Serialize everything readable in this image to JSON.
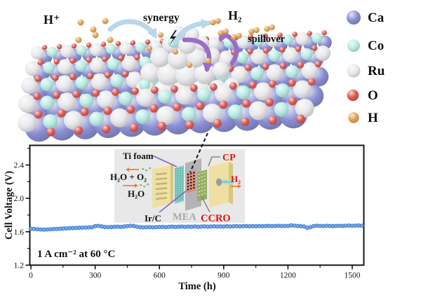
{
  "figure": {
    "top_labels": {
      "h_plus": "H⁺",
      "synergy": "synergy",
      "h2": "H₂",
      "spillover": "spillover"
    },
    "legend": {
      "items": [
        {
          "label": "Ca",
          "atom": "Ca"
        },
        {
          "label": "Co",
          "atom": "Co"
        },
        {
          "label": "Ru",
          "atom": "Ru"
        },
        {
          "label": "O",
          "atom": "O"
        },
        {
          "label": "H",
          "atom": "H"
        }
      ]
    },
    "inset": {
      "ti_foam": "Ti foam",
      "cp": "CP",
      "h2o_o2": "H₂O + O₂",
      "h2o": "H₂O",
      "irc": "Ir/C",
      "mea": "MEA",
      "ccro": "CCRO",
      "h2_out": "H₂"
    }
  },
  "chart_data": {
    "type": "scatter",
    "title": "",
    "xlabel": "Time (h)",
    "ylabel": "Cell Voltage (V)",
    "xlim": [
      0,
      1570
    ],
    "ylim": [
      1.2,
      2.63
    ],
    "x_ticks": [
      0,
      300,
      600,
      900,
      1200,
      1500
    ],
    "y_ticks": [
      1.2,
      1.6,
      2.0,
      2.4
    ],
    "x_minor_tick_step": 150,
    "y_minor_tick_step": 0.2,
    "grid": false,
    "annotation": "1 A cm⁻² at 60 °C",
    "series": [
      {
        "name": "cell voltage at 1 A cm-2",
        "color": "#6ea3e8",
        "t_start": 0,
        "t_step": 15,
        "values": [
          1.636,
          1.633,
          1.63,
          1.627,
          1.625,
          1.627,
          1.629,
          1.632,
          1.634,
          1.636,
          1.638,
          1.64,
          1.642,
          1.644,
          1.645,
          1.647,
          1.649,
          1.65,
          1.652,
          1.653,
          1.667,
          1.671,
          1.664,
          1.657,
          1.655,
          1.657,
          1.659,
          1.661,
          1.658,
          1.663,
          1.667,
          1.672,
          1.669,
          1.661,
          1.655,
          1.652,
          1.654,
          1.656,
          1.653,
          1.655,
          1.657,
          1.658,
          1.656,
          1.659,
          1.661,
          1.658,
          1.66,
          1.662,
          1.659,
          1.661,
          1.66,
          1.663,
          1.66,
          1.662,
          1.664,
          1.661,
          1.663,
          1.665,
          1.662,
          1.664,
          1.662,
          1.666,
          1.663,
          1.665,
          1.667,
          1.664,
          1.666,
          1.668,
          1.665,
          1.667,
          1.665,
          1.668,
          1.666,
          1.668,
          1.67,
          1.667,
          1.669,
          1.671,
          1.668,
          1.67,
          1.669,
          1.677,
          1.673,
          1.669,
          1.666,
          1.663,
          1.648,
          1.655,
          1.668,
          1.672,
          1.67,
          1.668,
          1.671,
          1.669,
          1.667,
          1.67,
          1.671,
          1.669,
          1.672,
          1.674,
          1.671,
          1.673,
          1.675,
          1.672
        ]
      }
    ]
  },
  "colors": {
    "atoms": {
      "Ca": "#8a8fd4",
      "Co": "#b9ece4",
      "Ru": "#e9e9ec",
      "O": "#dd5a52",
      "H": "#e2a455"
    },
    "arrow_blue": "#b9d7ec",
    "arrow_purple": "#9b6cc8",
    "bolt": "#141414",
    "chart": {
      "point_fill": "#6ea3e8",
      "point_stroke": "#3d77cc",
      "frame": "#161616"
    },
    "inset": {
      "bg": "#e8e8e8",
      "plate": "#eee0a2",
      "plate_side": "#d8c67c",
      "plate_top": "#f6ecc2",
      "groove": "#c4b276",
      "ti_foam": "#82cdc3",
      "ti_foam_dot": "#4ea89d",
      "mea": "#b4b4b6",
      "catalyst": "#e08d7a",
      "ccro": "#94ae60",
      "ccro_dot": "#dce9b4",
      "tube": "#a8dcd2",
      "nozzle": "#9b9b9d",
      "label_red": "#e8100c",
      "label_grey": "#a9a9ab",
      "pointer_purple": "#8a5fc2",
      "pointer_grey": "#8a8a8a",
      "arrow_orange": "#e8832c",
      "bubble_green": "#79bd85"
    }
  }
}
